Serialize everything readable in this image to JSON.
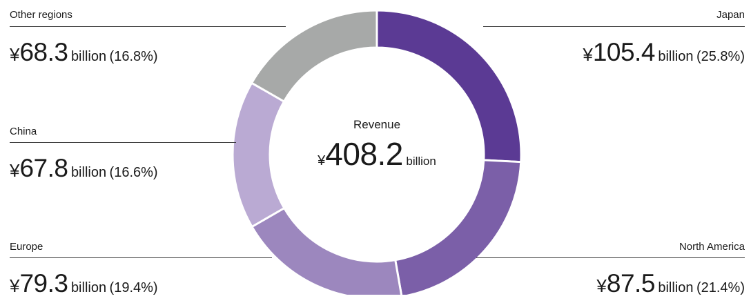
{
  "chart_data": {
    "type": "pie",
    "center": {
      "title": "Revenue",
      "currency": "¥",
      "value": "408.2",
      "unit": "billion",
      "total": 408.2
    },
    "slices": [
      {
        "name": "Japan",
        "currency": "¥",
        "amount": "105.4",
        "unit": "billion",
        "pct": "(25.8%)",
        "value": 105.4,
        "color": "#5b3a94"
      },
      {
        "name": "North America",
        "currency": "¥",
        "amount": "87.5",
        "unit": "billion",
        "pct": "(21.4%)",
        "value": 87.5,
        "color": "#7b5fa8"
      },
      {
        "name": "Europe",
        "currency": "¥",
        "amount": "79.3",
        "unit": "billion",
        "pct": "(19.4%)",
        "value": 79.3,
        "color": "#9c87be"
      },
      {
        "name": "China",
        "currency": "¥",
        "amount": "67.8",
        "unit": "billion",
        "pct": "(16.6%)",
        "value": 67.8,
        "color": "#baaad3"
      },
      {
        "name": "Other regions",
        "currency": "¥",
        "amount": "68.3",
        "unit": "billion",
        "pct": "(16.8%)",
        "value": 68.3,
        "color": "#a7a9a8"
      }
    ]
  }
}
